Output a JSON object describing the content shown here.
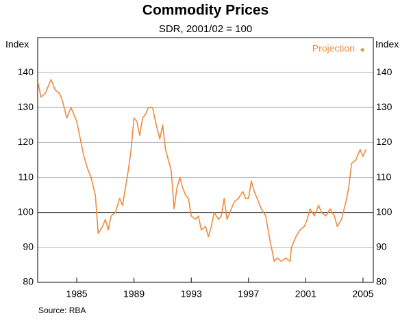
{
  "chart_data": {
    "type": "line",
    "title": "Commodity Prices",
    "subtitle": "SDR, 2001/02 = 100",
    "y_label": "Index",
    "y2_label": "Index",
    "source": "Source: RBA",
    "legend_label": "Projection",
    "legend_color": "#f08a3c",
    "reference_line": 100,
    "grid": true,
    "xlim": [
      1982.27,
      2005.72
    ],
    "xticks": [
      1985,
      1989,
      1993,
      1997,
      2001,
      2005
    ],
    "ylim": [
      80,
      150
    ],
    "yticks": [
      80,
      90,
      100,
      110,
      120,
      130,
      140
    ],
    "x": [
      1982.3,
      1982.5,
      1982.8,
      1983.0,
      1983.2,
      1983.5,
      1983.8,
      1984.0,
      1984.3,
      1984.6,
      1984.8,
      1985.0,
      1985.2,
      1985.5,
      1985.8,
      1986.0,
      1986.3,
      1986.5,
      1986.8,
      1987.0,
      1987.2,
      1987.4,
      1987.7,
      1988.0,
      1988.2,
      1988.4,
      1988.6,
      1988.8,
      1989.0,
      1989.2,
      1989.4,
      1989.6,
      1989.8,
      1990.0,
      1990.3,
      1990.5,
      1990.8,
      1991.0,
      1991.2,
      1991.4,
      1991.6,
      1991.8,
      1992.0,
      1992.2,
      1992.4,
      1992.6,
      1992.8,
      1993.0,
      1993.3,
      1993.5,
      1993.7,
      1994.0,
      1994.2,
      1994.4,
      1994.6,
      1994.9,
      1995.1,
      1995.3,
      1995.5,
      1995.8,
      1996.0,
      1996.3,
      1996.6,
      1996.8,
      1997.0,
      1997.2,
      1997.4,
      1997.6,
      1997.9,
      1998.2,
      1998.5,
      1998.8,
      1999.0,
      1999.3,
      1999.6,
      1999.9,
      2000.0,
      2000.3,
      2000.6,
      2000.9,
      2001.1,
      2001.3,
      2001.6,
      2001.9,
      2002.1,
      2002.4,
      2002.7,
      2003.0,
      2003.2,
      2003.5,
      2003.8,
      2004.0,
      2004.2,
      2004.5,
      2004.8,
      2005.0,
      2005.2
    ],
    "series": [
      {
        "name": "Commodity prices",
        "color": "#f08a3c",
        "values": [
          137,
          133,
          134,
          136,
          138,
          135,
          134,
          132,
          127,
          130,
          128,
          126,
          122,
          116,
          112,
          110,
          105,
          94,
          96,
          98,
          95,
          99,
          100,
          104,
          102,
          107,
          112,
          118,
          127,
          126,
          122,
          127,
          128,
          130,
          130,
          126,
          121,
          125,
          118,
          115,
          112,
          101,
          107,
          110,
          107,
          105,
          104,
          99,
          98,
          99,
          95,
          96,
          93,
          96,
          100,
          98,
          99,
          104,
          98,
          101,
          103,
          104,
          106,
          104,
          104,
          109,
          106,
          104,
          101,
          99,
          92,
          86,
          87,
          86,
          87,
          86,
          90,
          93,
          95,
          96,
          98,
          101,
          99,
          102,
          100,
          99,
          101,
          99,
          96,
          98,
          103,
          107,
          114,
          115,
          118,
          116,
          118
        ]
      }
    ]
  }
}
